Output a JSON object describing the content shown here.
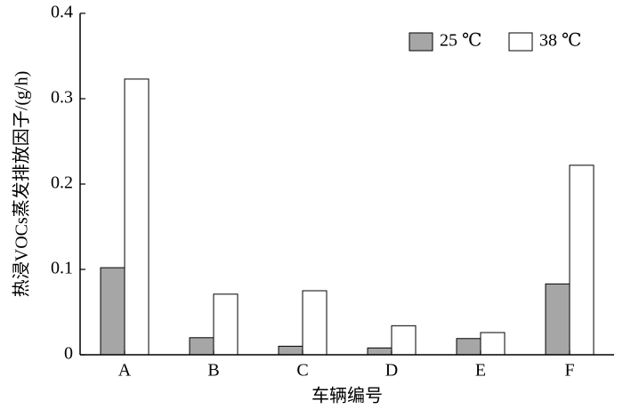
{
  "chart_data": {
    "type": "bar",
    "y_label": "热浸VOCs蒸发排放因子/(g/h)",
    "x_label": "车辆编号",
    "categories": [
      "A",
      "B",
      "C",
      "D",
      "E",
      "F"
    ],
    "series": [
      {
        "name": "25 ℃",
        "color": "#a6a6a6",
        "values": [
          0.102,
          0.02,
          0.01,
          0.008,
          0.019,
          0.083
        ]
      },
      {
        "name": "38 ℃",
        "color": "#ffffff",
        "values": [
          0.323,
          0.071,
          0.075,
          0.034,
          0.026,
          0.222
        ]
      }
    ],
    "ylim": [
      0,
      0.4
    ],
    "yticks": [
      0,
      0.1,
      0.2,
      0.3,
      0.4
    ],
    "legend": "upper-right"
  }
}
